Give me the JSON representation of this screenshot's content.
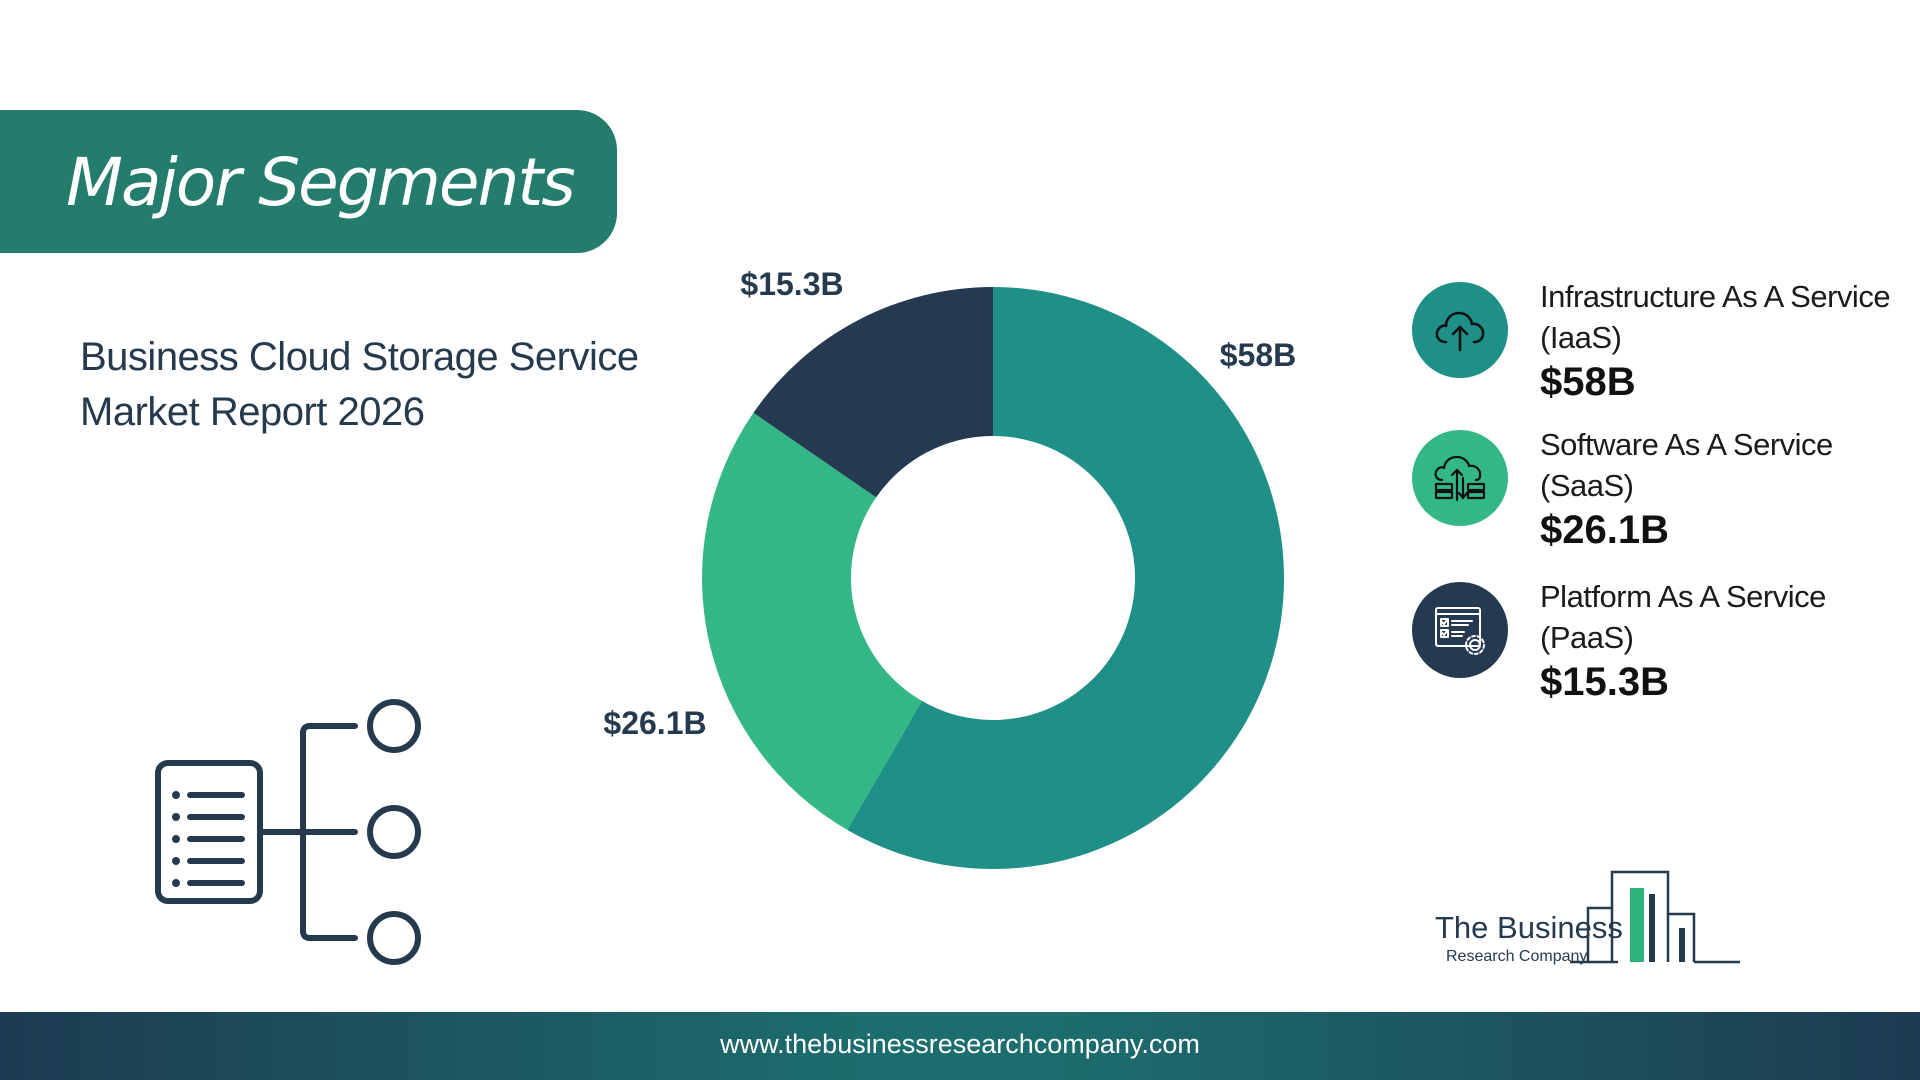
{
  "header": {
    "title": "Major Segments"
  },
  "report": {
    "line1": "Business Cloud Storage Service",
    "line2": "Market Report 2026"
  },
  "chart_data": {
    "type": "pie",
    "variant": "donut",
    "categories": [
      "Infrastructure As A Service (IaaS)",
      "Software As A Service (SaaS)",
      "Platform As A Service (PaaS)"
    ],
    "values": [
      58,
      26.1,
      15.3
    ],
    "labels": [
      "$58B",
      "$26.1B",
      "$15.3B"
    ],
    "colors": [
      "#1e9087",
      "#34b786",
      "#253a50"
    ]
  },
  "legend": {
    "items": [
      {
        "name": "Infrastructure As A Service (IaaS)",
        "value": "$58B",
        "icon": "cloud-upload-icon",
        "color": "#1e9087"
      },
      {
        "name": "Software As A Service (SaaS)",
        "value": "$26.1B",
        "icon": "cloud-server-icon",
        "color": "#34b786"
      },
      {
        "name": "Platform As A Service (PaaS)",
        "value": "$15.3B",
        "icon": "dashboard-gear-icon",
        "color": "#253a50"
      }
    ]
  },
  "brand": {
    "line1": "The Business",
    "line2": "Research Company"
  },
  "footer": {
    "url": "www.thebusinessresearchcompany.com"
  },
  "decor": {
    "icon": "org-chart-icon"
  }
}
